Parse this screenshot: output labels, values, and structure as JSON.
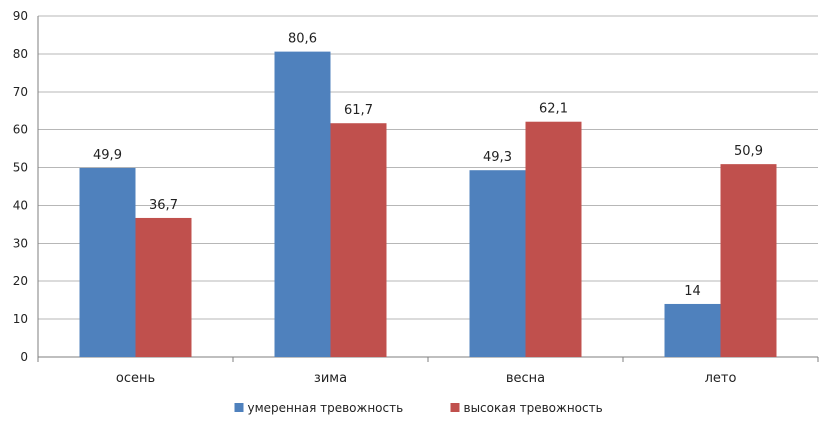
{
  "chart_data": {
    "type": "bar",
    "title": "",
    "xlabel": "",
    "ylabel": "",
    "categories": [
      "осень",
      "зима",
      "весна",
      "лето"
    ],
    "series": [
      {
        "name": "умеренная тревожность",
        "color": "#4f81bd",
        "values": [
          49.9,
          80.6,
          49.3,
          14
        ],
        "labels": [
          "49,9",
          "80,6",
          "49,3",
          "14"
        ]
      },
      {
        "name": "высокая тревожность",
        "color": "#c0504d",
        "values": [
          36.7,
          61.7,
          62.1,
          50.9
        ],
        "labels": [
          "36,7",
          "61,7",
          "62,1",
          "50,9"
        ]
      }
    ],
    "ylim": [
      0,
      90
    ],
    "yticks": [
      0,
      10,
      20,
      30,
      40,
      50,
      60,
      70,
      80,
      90
    ],
    "grid": true,
    "legend_position": "bottom"
  }
}
